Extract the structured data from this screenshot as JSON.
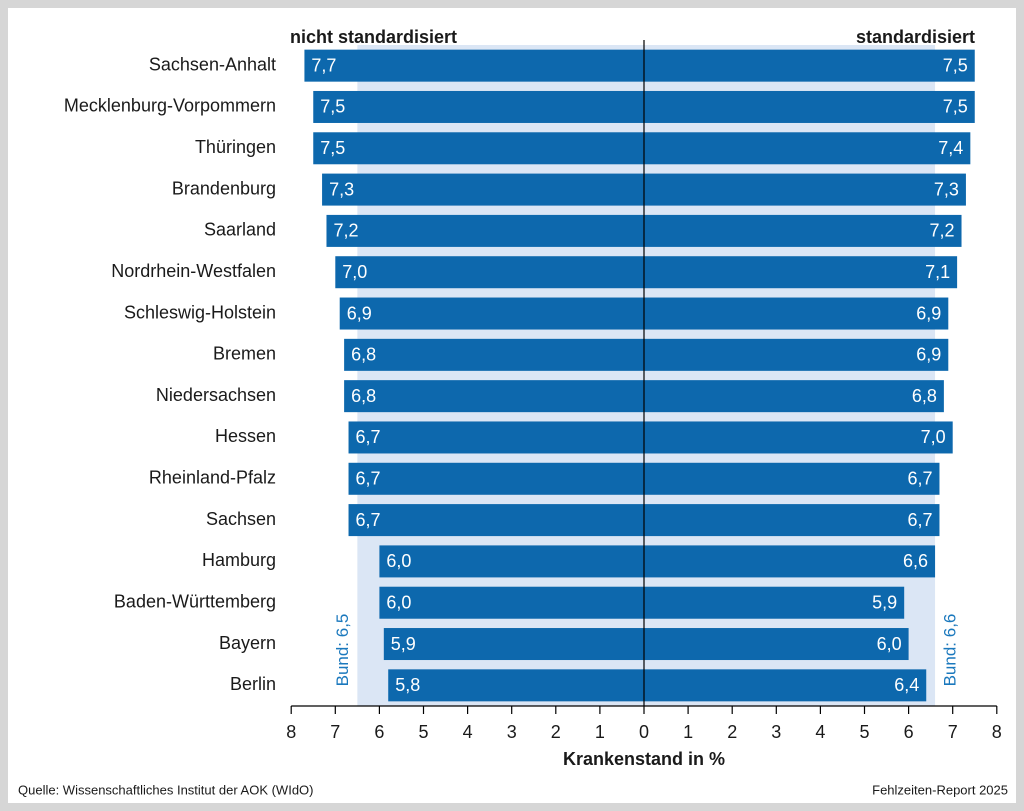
{
  "chart_data": {
    "type": "bar",
    "categories": [
      "Sachsen-Anhalt",
      "Mecklenburg-Vorpommern",
      "Thüringen",
      "Brandenburg",
      "Saarland",
      "Nordrhein-Westfalen",
      "Schleswig-Holstein",
      "Bremen",
      "Niedersachsen",
      "Hessen",
      "Rheinland-Pfalz",
      "Sachsen",
      "Hamburg",
      "Baden-Württemberg",
      "Bayern",
      "Berlin"
    ],
    "series": [
      {
        "name": "nicht standardisiert",
        "color": "#0d68ad",
        "values": [
          7.7,
          7.5,
          7.5,
          7.3,
          7.2,
          7.0,
          6.9,
          6.8,
          6.8,
          6.7,
          6.7,
          6.7,
          6.0,
          6.0,
          5.9,
          5.8
        ],
        "value_labels": [
          "7,7",
          "7,5",
          "7,5",
          "7,3",
          "7,2",
          "7,0",
          "6,9",
          "6,8",
          "6,8",
          "6,7",
          "6,7",
          "6,7",
          "6,0",
          "6,0",
          "5,9",
          "5,8"
        ]
      },
      {
        "name": "standardisiert",
        "color": "#0d68ad",
        "values": [
          7.5,
          7.5,
          7.4,
          7.3,
          7.2,
          7.1,
          6.9,
          6.9,
          6.8,
          7.0,
          6.7,
          6.7,
          6.6,
          5.9,
          6.0,
          6.4
        ],
        "value_labels": [
          "7,5",
          "7,5",
          "7,4",
          "7,3",
          "7,2",
          "7,1",
          "6,9",
          "6,9",
          "6,8",
          "7,0",
          "6,7",
          "6,7",
          "6,6",
          "5,9",
          "6,0",
          "6,4"
        ]
      }
    ],
    "annotations": [
      {
        "label": "Bund: 6,5",
        "value": 6.5
      },
      {
        "label": "Bund: 6,6",
        "value": 6.6
      }
    ],
    "xlim": [
      0,
      8
    ],
    "xticks": [
      0,
      1,
      2,
      3,
      4,
      5,
      6,
      7,
      8
    ],
    "xlabel": "Krankenstand in %",
    "source": "Quelle: Wissenschaftliches Institut der AOK (WIdO)",
    "note": "Fehlzeiten-Report 2025"
  }
}
